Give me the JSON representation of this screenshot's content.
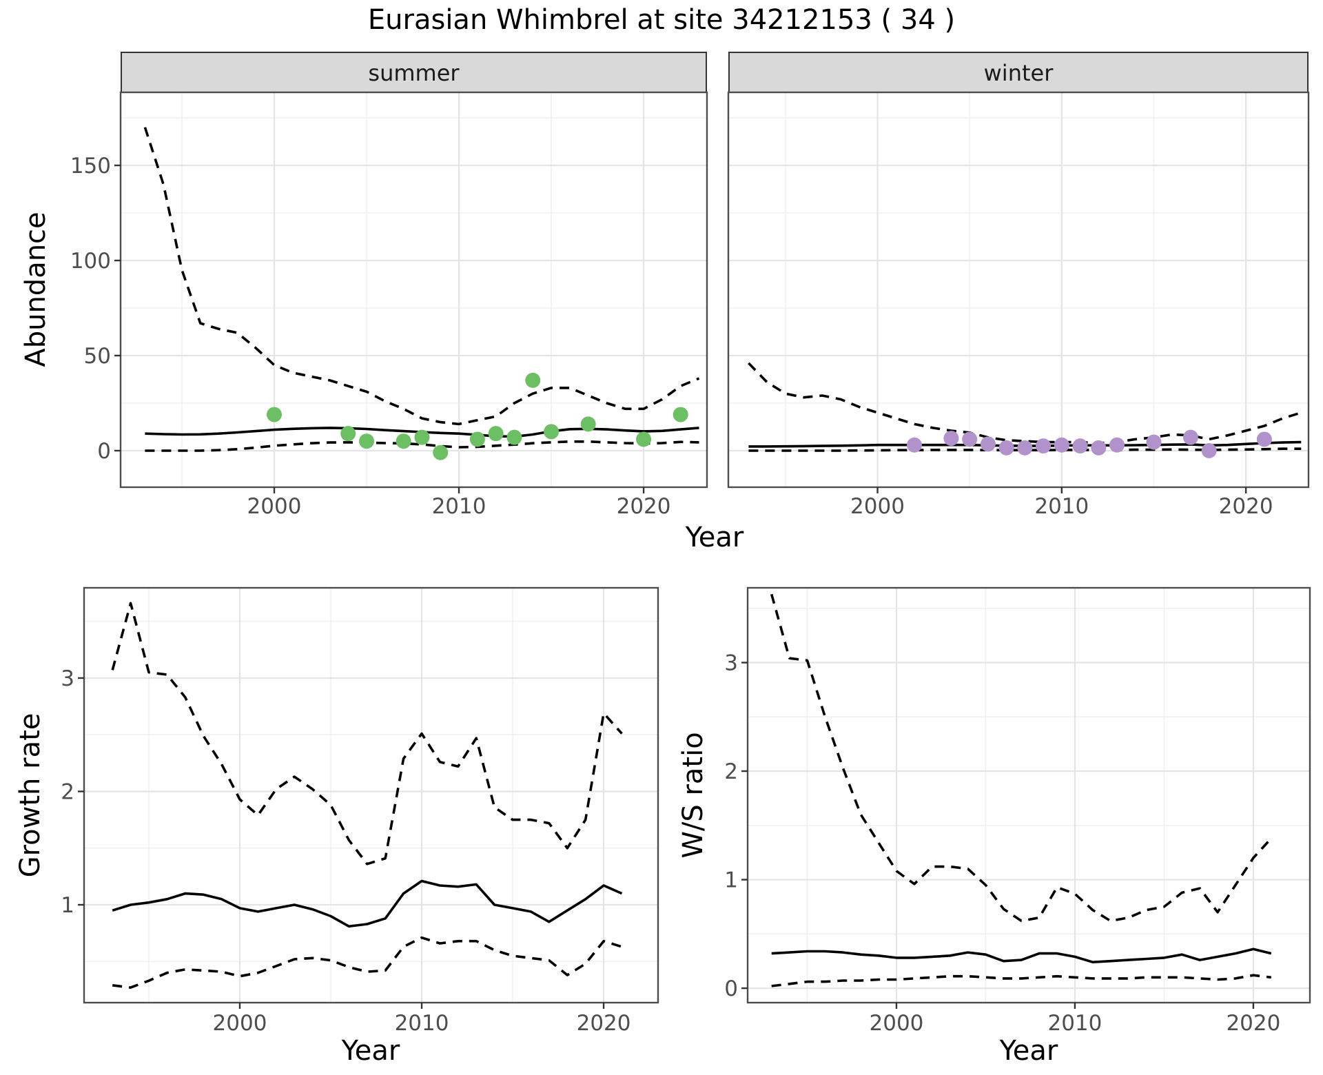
{
  "title": "Eurasian Whimbrel at site 34212153 ( 34 )",
  "facets": {
    "summer_label": "summer",
    "winter_label": "winter"
  },
  "axes": {
    "abundance_label": "Abundance",
    "year_label_top": "Year",
    "year_label_growth": "Year",
    "year_label_ws": "Year",
    "growth_label": "Growth rate",
    "ws_label": "W/S ratio"
  },
  "colors": {
    "summer_point": "#6cbf63",
    "winter_point": "#b292ca",
    "line": "#000000",
    "grid_major": "#e4e4e4",
    "grid_minor": "#f1f1f1",
    "panel_border": "#4d4d4d",
    "tick": "#333333",
    "tick_label": "#4d4d4d",
    "panel_bg": "#ffffff"
  },
  "chart_data": [
    {
      "id": "abundance-summer",
      "type": "line",
      "facet": "summer",
      "ylabel": "Abundance",
      "xlabel": "Year",
      "x": [
        1993,
        1994,
        1995,
        1996,
        1997,
        1998,
        1999,
        2000,
        2001,
        2002,
        2003,
        2004,
        2005,
        2006,
        2007,
        2008,
        2009,
        2010,
        2011,
        2012,
        2013,
        2014,
        2015,
        2016,
        2017,
        2018,
        2019,
        2020,
        2021,
        2022,
        2023
      ],
      "series": [
        {
          "name": "upper_95ci",
          "style": "dashed",
          "values": [
            170,
            140,
            95,
            67,
            64,
            62,
            54,
            45,
            41,
            39,
            37,
            34,
            31,
            26,
            22,
            17,
            15,
            14,
            16,
            18,
            25,
            30,
            33,
            33,
            29,
            25,
            22,
            22,
            27,
            34,
            38
          ]
        },
        {
          "name": "median",
          "style": "solid",
          "values": [
            9,
            8.7,
            8.5,
            8.6,
            9,
            9.6,
            10.3,
            11,
            11.5,
            11.8,
            12,
            11.8,
            11.4,
            10.8,
            10.3,
            9.8,
            9.3,
            9,
            8.3,
            7.6,
            7.4,
            8.5,
            10.2,
            11.3,
            11.5,
            11.2,
            10.6,
            10.2,
            10.4,
            11.2,
            12
          ]
        },
        {
          "name": "lower_95ci",
          "style": "dashed",
          "values": [
            0,
            0,
            0,
            0,
            0.3,
            0.8,
            1.6,
            2.6,
            3.3,
            3.9,
            4.3,
            4.4,
            4.2,
            4,
            3.8,
            3.3,
            2.4,
            1.8,
            2,
            2.6,
            3.2,
            3.9,
            4.4,
            4.8,
            4.8,
            4.4,
            4,
            3.8,
            4,
            4.6,
            4.4
          ]
        }
      ],
      "points": {
        "name": "observed-counts-summer",
        "color_key": "summer_point",
        "xy": [
          [
            2000,
            19
          ],
          [
            2004,
            9
          ],
          [
            2005,
            5
          ],
          [
            2007,
            5
          ],
          [
            2008,
            7
          ],
          [
            2009,
            -1
          ],
          [
            2011,
            6
          ],
          [
            2012,
            9
          ],
          [
            2013,
            7
          ],
          [
            2014,
            37
          ],
          [
            2015,
            10
          ],
          [
            2017,
            14
          ],
          [
            2020,
            6
          ],
          [
            2022,
            19
          ]
        ]
      },
      "xlim": [
        1991.68,
        2023.43
      ],
      "ylim": [
        -19.2,
        188.4
      ],
      "xticks": [
        2000,
        2010,
        2020
      ],
      "xticks_minor": [
        1995,
        2005,
        2015
      ],
      "yticks": [
        0,
        50,
        100,
        150
      ],
      "yticks_minor": [
        25,
        75,
        125,
        175
      ],
      "xtick_labels": [
        "2000",
        "2010",
        "2020"
      ],
      "ytick_labels": [
        "0",
        "50",
        "100",
        "150"
      ]
    },
    {
      "id": "abundance-winter",
      "type": "line",
      "facet": "winter",
      "ylabel": "Abundance",
      "xlabel": "Year",
      "x": [
        1993,
        1994,
        1995,
        1996,
        1997,
        1998,
        1999,
        2000,
        2001,
        2002,
        2003,
        2004,
        2005,
        2006,
        2007,
        2008,
        2009,
        2010,
        2011,
        2012,
        2013,
        2014,
        2015,
        2016,
        2017,
        2018,
        2019,
        2020,
        2021,
        2022,
        2023
      ],
      "series": [
        {
          "name": "upper_95ci",
          "style": "dashed",
          "values": [
            46,
            36,
            30,
            28,
            29,
            27,
            23,
            20,
            17,
            14,
            12,
            10.5,
            9.5,
            7,
            5.5,
            5,
            4.5,
            4.5,
            4.5,
            4,
            4.5,
            6,
            7,
            8.5,
            8,
            6,
            8,
            10.5,
            13,
            17,
            20
          ]
        },
        {
          "name": "median",
          "style": "solid",
          "values": [
            2.2,
            2.2,
            2.3,
            2.4,
            2.5,
            2.6,
            2.8,
            3,
            3,
            3,
            3,
            3,
            3,
            2.8,
            2.6,
            2.5,
            2.5,
            2.7,
            2.8,
            2.8,
            2.8,
            2.9,
            3,
            3.2,
            3.3,
            2.8,
            3,
            3.5,
            4,
            4.3,
            4.5
          ]
        },
        {
          "name": "lower_95ci",
          "style": "dashed",
          "values": [
            0,
            0,
            0,
            0,
            0,
            0,
            0.1,
            0.2,
            0.3,
            0.3,
            0.4,
            0.4,
            0.4,
            0.3,
            0.3,
            0.3,
            0.3,
            0.4,
            0.4,
            0.4,
            0.4,
            0.5,
            0.5,
            0.6,
            0.5,
            0.4,
            0.5,
            0.6,
            0.8,
            1,
            1
          ]
        }
      ],
      "points": {
        "name": "observed-counts-winter",
        "color_key": "winter_point",
        "xy": [
          [
            2002,
            3
          ],
          [
            2004,
            6.5
          ],
          [
            2005,
            6
          ],
          [
            2006,
            3.5
          ],
          [
            2007,
            1.5
          ],
          [
            2008,
            1.5
          ],
          [
            2009,
            2.5
          ],
          [
            2010,
            3
          ],
          [
            2011,
            2.5
          ],
          [
            2012,
            1.5
          ],
          [
            2013,
            3
          ],
          [
            2015,
            4.5
          ],
          [
            2017,
            7
          ],
          [
            2018,
            0
          ],
          [
            2021,
            6
          ]
        ]
      },
      "xlim": [
        1991.9,
        2023.4
      ],
      "ylim": [
        -19.2,
        188.4
      ],
      "xticks": [
        2000,
        2010,
        2020
      ],
      "xticks_minor": [
        1995,
        2005,
        2015
      ],
      "yticks": [
        0,
        50,
        100,
        150
      ],
      "yticks_minor": [
        25,
        75,
        125,
        175
      ],
      "xtick_labels": [
        "2000",
        "2010",
        "2020"
      ],
      "ytick_labels": []
    },
    {
      "id": "growth-rate",
      "type": "line",
      "ylabel": "Growth rate",
      "xlabel": "Year",
      "x": [
        1993,
        1994,
        1995,
        1996,
        1997,
        1998,
        1999,
        2000,
        2001,
        2002,
        2003,
        2004,
        2005,
        2006,
        2007,
        2008,
        2009,
        2010,
        2011,
        2012,
        2013,
        2014,
        2015,
        2016,
        2017,
        2018,
        2019,
        2020,
        2021
      ],
      "series": [
        {
          "name": "upper_95ci",
          "style": "dashed",
          "values": [
            3.07,
            3.66,
            3.05,
            3.03,
            2.83,
            2.49,
            2.24,
            1.93,
            1.79,
            2.02,
            2.13,
            2.02,
            1.88,
            1.57,
            1.36,
            1.41,
            2.29,
            2.51,
            2.26,
            2.22,
            2.47,
            1.86,
            1.75,
            1.75,
            1.72,
            1.5,
            1.75,
            2.69,
            2.51
          ]
        },
        {
          "name": "median",
          "style": "solid",
          "values": [
            0.95,
            1,
            1.02,
            1.05,
            1.1,
            1.09,
            1.05,
            0.97,
            0.94,
            0.97,
            1,
            0.96,
            0.9,
            0.81,
            0.83,
            0.88,
            1.1,
            1.21,
            1.17,
            1.16,
            1.18,
            1,
            0.97,
            0.94,
            0.85,
            0.95,
            1.05,
            1.17,
            1.1
          ]
        },
        {
          "name": "lower_95ci",
          "style": "dashed",
          "values": [
            0.29,
            0.27,
            0.33,
            0.4,
            0.43,
            0.42,
            0.41,
            0.37,
            0.4,
            0.46,
            0.52,
            0.53,
            0.51,
            0.45,
            0.41,
            0.42,
            0.63,
            0.71,
            0.66,
            0.68,
            0.68,
            0.6,
            0.55,
            0.53,
            0.51,
            0.38,
            0.48,
            0.68,
            0.63
          ]
        }
      ],
      "xlim": [
        1991.44,
        2022.99
      ],
      "ylim": [
        0.137,
        3.796
      ],
      "xticks": [
        2000,
        2010,
        2020
      ],
      "xticks_minor": [
        1995,
        2005,
        2015
      ],
      "yticks": [
        1,
        2,
        3
      ],
      "yticks_minor": [
        0.5,
        1.5,
        2.5,
        3.5
      ],
      "xtick_labels": [
        "2000",
        "2010",
        "2020"
      ],
      "ytick_labels": [
        "1",
        "2",
        "3"
      ]
    },
    {
      "id": "ws-ratio",
      "type": "line",
      "ylabel": "W/S ratio",
      "xlabel": "Year",
      "x": [
        1993,
        1994,
        1995,
        1996,
        1997,
        1998,
        1999,
        2000,
        2001,
        2002,
        2003,
        2004,
        2005,
        2006,
        2007,
        2008,
        2009,
        2010,
        2011,
        2012,
        2013,
        2014,
        2015,
        2016,
        2017,
        2018,
        2019,
        2020,
        2021
      ],
      "series": [
        {
          "name": "upper_95ci",
          "style": "dashed",
          "values": [
            3.63,
            3.04,
            3.02,
            2.5,
            2.03,
            1.6,
            1.34,
            1.08,
            0.96,
            1.12,
            1.12,
            1.1,
            0.95,
            0.73,
            0.62,
            0.65,
            0.93,
            0.87,
            0.72,
            0.62,
            0.65,
            0.72,
            0.75,
            0.88,
            0.92,
            0.7,
            0.95,
            1.2,
            1.38
          ]
        },
        {
          "name": "median",
          "style": "solid",
          "values": [
            0.32,
            0.33,
            0.34,
            0.34,
            0.33,
            0.31,
            0.3,
            0.28,
            0.28,
            0.29,
            0.3,
            0.33,
            0.31,
            0.25,
            0.26,
            0.32,
            0.32,
            0.29,
            0.24,
            0.25,
            0.26,
            0.27,
            0.28,
            0.31,
            0.26,
            0.29,
            0.32,
            0.36,
            0.32
          ]
        },
        {
          "name": "lower_95ci",
          "style": "dashed",
          "values": [
            0.02,
            0.04,
            0.06,
            0.06,
            0.07,
            0.07,
            0.08,
            0.08,
            0.09,
            0.1,
            0.11,
            0.11,
            0.1,
            0.09,
            0.09,
            0.1,
            0.11,
            0.1,
            0.09,
            0.09,
            0.09,
            0.1,
            0.1,
            0.1,
            0.09,
            0.08,
            0.09,
            0.12,
            0.1
          ]
        }
      ],
      "xlim": [
        1991.66,
        2023.17
      ],
      "ylim": [
        -0.133,
        3.689
      ],
      "xticks": [
        2000,
        2010,
        2020
      ],
      "xticks_minor": [
        1995,
        2005,
        2015
      ],
      "yticks": [
        0,
        1,
        2,
        3
      ],
      "yticks_minor": [
        0.5,
        1.5,
        2.5,
        3.5
      ],
      "xtick_labels": [
        "2000",
        "2010",
        "2020"
      ],
      "ytick_labels": [
        "0",
        "1",
        "2",
        "3"
      ]
    }
  ]
}
